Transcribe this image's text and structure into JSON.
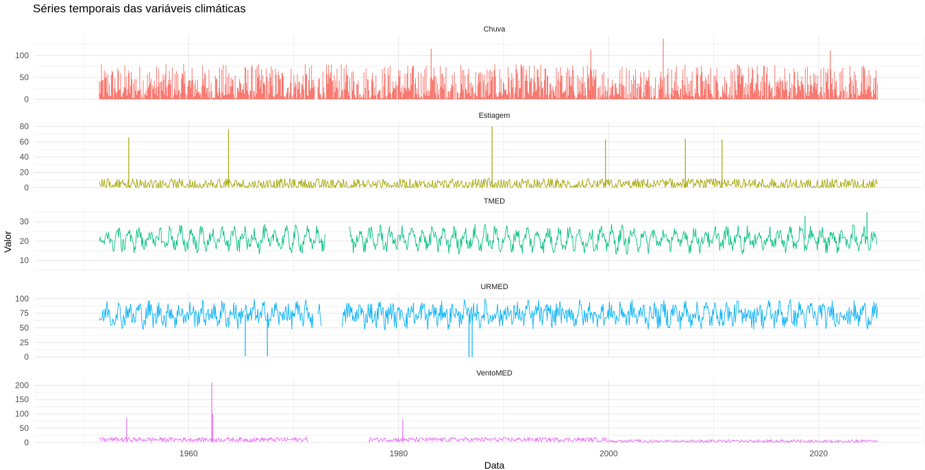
{
  "chart_data": {
    "type": "line",
    "title": "Séries temporais das variáveis climáticas",
    "xlabel": "Data",
    "ylabel": "Valor",
    "xlim": [
      1945.3,
      2029.8
    ],
    "x_ticks": [
      1960,
      1980,
      2000,
      2020
    ],
    "grid": true,
    "legend": "none",
    "panels": [
      {
        "name": "Chuva",
        "color": "#F8766D",
        "style": "spikes",
        "ylim": [
          -8,
          145
        ],
        "yticks": [
          0,
          50,
          100
        ],
        "x_range": [
          1951.5,
          2025.6
        ],
        "baseline": 1,
        "noise_amp": 40,
        "gaps": [
          [
            1972.0,
            1972.3
          ]
        ],
        "peaks": [
          [
            1983.1,
            115
          ],
          [
            1998.3,
            113
          ],
          [
            2005.2,
            138
          ],
          [
            2021.1,
            111
          ]
        ]
      },
      {
        "name": "Estiagem",
        "color": "#A3A500",
        "style": "steps",
        "ylim": [
          -2,
          86
        ],
        "yticks": [
          0,
          20,
          40,
          60,
          80
        ],
        "x_range": [
          1951.5,
          2025.6
        ],
        "baseline": 0,
        "noise_amp": 12,
        "gaps": [],
        "peaks": [
          [
            1954.3,
            66
          ],
          [
            1963.8,
            76
          ],
          [
            1988.9,
            80
          ],
          [
            1999.7,
            63
          ],
          [
            2007.3,
            64
          ],
          [
            2010.8,
            63
          ]
        ]
      },
      {
        "name": "TMED",
        "color": "#00BF7D",
        "style": "seasonal",
        "ylim": [
          4,
          37
        ],
        "yticks": [
          10,
          20,
          30
        ],
        "x_range": [
          1951.5,
          2025.6
        ],
        "mean": 21,
        "season_amp": 4,
        "noise_amp": 4,
        "gaps": [
          [
            1973.0,
            1975.3
          ]
        ],
        "peaks": [
          [
            2024.6,
            35
          ],
          [
            2018.7,
            33
          ]
        ]
      },
      {
        "name": "URMED",
        "color": "#00B0F6",
        "style": "seasonal",
        "ylim": [
          -1,
          108
        ],
        "yticks": [
          0,
          25,
          50,
          75,
          100
        ],
        "x_range": [
          1951.5,
          2025.6
        ],
        "mean": 73,
        "season_amp": 9,
        "noise_amp": 18,
        "gaps": [
          [
            1971.9,
            1972.3
          ],
          [
            1972.7,
            1974.6
          ]
        ],
        "peaks": [
          [
            1965.4,
            1
          ],
          [
            1967.5,
            1
          ],
          [
            1986.7,
            0
          ],
          [
            1987.0,
            0
          ]
        ]
      },
      {
        "name": "VentoMED",
        "color": "#E76BF3",
        "style": "flat",
        "ylim": [
          -10,
          220
        ],
        "yticks": [
          0,
          50,
          100,
          150,
          200
        ],
        "x_range": [
          1951.5,
          2025.6
        ],
        "mean": 10,
        "noise_amp": 8,
        "gaps": [
          [
            1971.4,
            1977.1
          ]
        ],
        "peaks": [
          [
            1962.2,
            210
          ],
          [
            1954.1,
            85
          ],
          [
            1980.4,
            80
          ],
          [
            1962.3,
            100
          ]
        ]
      }
    ]
  }
}
